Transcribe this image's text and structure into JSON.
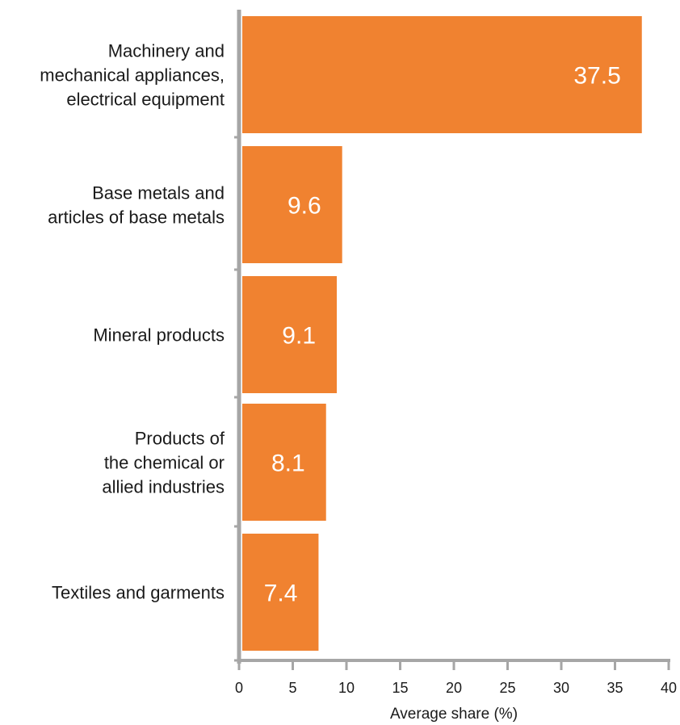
{
  "chart_data": {
    "type": "bar",
    "orientation": "horizontal",
    "categories": [
      [
        "Machinery and",
        "mechanical appliances,",
        "electrical equipment"
      ],
      [
        "Base metals and",
        "articles of base metals"
      ],
      [
        "Mineral products"
      ],
      [
        "Products of",
        "the chemical or",
        "allied industries"
      ],
      [
        "Textiles and garments"
      ]
    ],
    "values": [
      37.5,
      9.6,
      9.1,
      8.1,
      7.4
    ],
    "data_labels": [
      "37.5",
      "9.6",
      "9.1",
      "8.1",
      "7.4"
    ],
    "xlabel": "Average share (%)",
    "xlim": [
      0,
      40
    ],
    "xticks": [
      0,
      5,
      10,
      15,
      20,
      25,
      30,
      35,
      40
    ],
    "grid": false,
    "legend": "none",
    "bar_color": "#F08230",
    "axis_color": "#A6A6A6"
  }
}
